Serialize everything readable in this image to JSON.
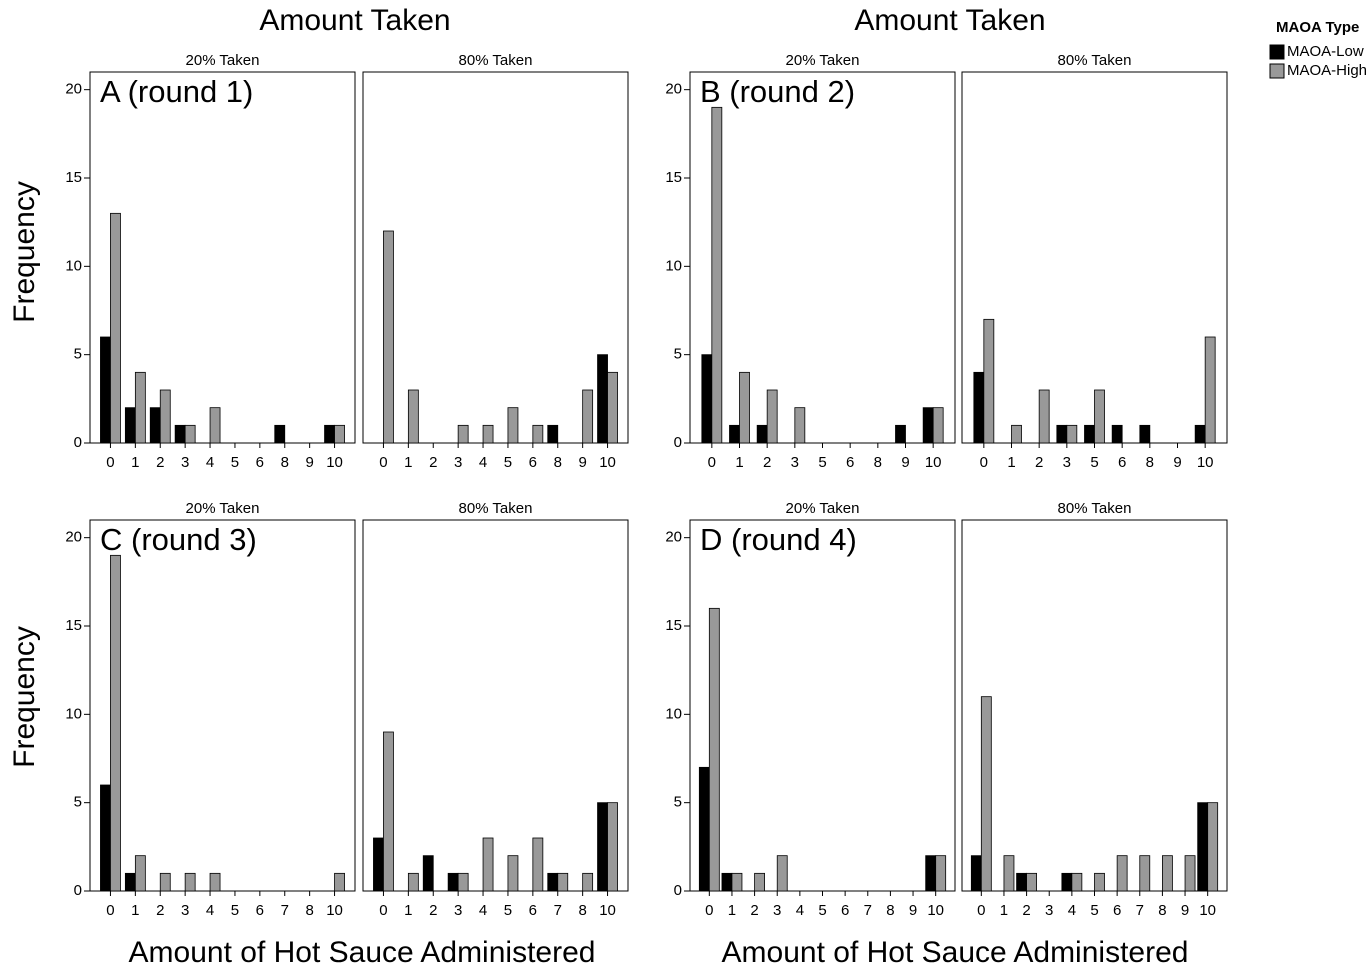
{
  "figure": {
    "column_titles": [
      "Amount Taken",
      "Amount Taken"
    ],
    "y_labels": [
      "Frequency",
      "Frequency"
    ],
    "x_labels": [
      "Amount of Hot Sauce Administered",
      "Amount of Hot Sauce Administered"
    ],
    "legend": {
      "title": "MAOA Type",
      "entries": [
        {
          "name": "MAOA-Low",
          "color": "#000000"
        },
        {
          "name": "MAOA-High",
          "color": "#999999"
        }
      ]
    }
  },
  "chart_data": [
    {
      "type": "bar",
      "subtitle": "20% Taken",
      "annotation": "A (round 1)",
      "categories": [
        "0",
        "1",
        "2",
        "3",
        "4",
        "5",
        "6",
        "8",
        "9",
        "10"
      ],
      "series": [
        {
          "values": [
            6,
            2,
            2,
            1,
            0,
            0,
            0,
            1,
            0,
            1
          ]
        },
        {
          "values": [
            13,
            4,
            3,
            1,
            2,
            0,
            0,
            0,
            0,
            1
          ]
        }
      ],
      "ylim": [
        0,
        21
      ],
      "yticks": [
        0,
        5,
        10,
        15,
        20
      ]
    },
    {
      "type": "bar",
      "subtitle": "80% Taken",
      "categories": [
        "0",
        "1",
        "2",
        "3",
        "4",
        "5",
        "6",
        "8",
        "9",
        "10"
      ],
      "series": [
        {
          "values": [
            0,
            0,
            0,
            0,
            0,
            0,
            0,
            1,
            0,
            5
          ]
        },
        {
          "values": [
            12,
            3,
            0,
            1,
            1,
            2,
            1,
            0,
            3,
            4
          ]
        }
      ],
      "ylim": [
        0,
        21
      ]
    },
    {
      "type": "bar",
      "subtitle": "20% Taken",
      "annotation": "B (round 2)",
      "categories": [
        "0",
        "1",
        "2",
        "3",
        "5",
        "6",
        "8",
        "9",
        "10"
      ],
      "series": [
        {
          "values": [
            5,
            1,
            1,
            0,
            0,
            0,
            0,
            1,
            2
          ]
        },
        {
          "values": [
            19,
            4,
            3,
            2,
            0,
            0,
            0,
            0,
            2
          ]
        }
      ],
      "ylim": [
        0,
        21
      ],
      "yticks": [
        0,
        5,
        10,
        15,
        20
      ]
    },
    {
      "type": "bar",
      "subtitle": "80% Taken",
      "categories": [
        "0",
        "1",
        "2",
        "3",
        "5",
        "6",
        "8",
        "9",
        "10"
      ],
      "series": [
        {
          "values": [
            4,
            0,
            0,
            1,
            1,
            1,
            1,
            0,
            1
          ]
        },
        {
          "values": [
            7,
            1,
            3,
            1,
            3,
            0,
            0,
            0,
            6
          ]
        }
      ],
      "ylim": [
        0,
        21
      ]
    },
    {
      "type": "bar",
      "subtitle": "20% Taken",
      "annotation": "C (round 3)",
      "categories": [
        "0",
        "1",
        "2",
        "3",
        "4",
        "5",
        "6",
        "7",
        "8",
        "10"
      ],
      "series": [
        {
          "values": [
            6,
            1,
            0,
            0,
            0,
            0,
            0,
            0,
            0,
            0
          ]
        },
        {
          "values": [
            19,
            2,
            1,
            1,
            1,
            0,
            0,
            0,
            0,
            1
          ]
        }
      ],
      "ylim": [
        0,
        21
      ],
      "yticks": [
        0,
        5,
        10,
        15,
        20
      ]
    },
    {
      "type": "bar",
      "subtitle": "80% Taken",
      "categories": [
        "0",
        "1",
        "2",
        "3",
        "4",
        "5",
        "6",
        "7",
        "8",
        "10"
      ],
      "series": [
        {
          "values": [
            3,
            0,
            2,
            1,
            0,
            0,
            0,
            1,
            0,
            5
          ]
        },
        {
          "values": [
            9,
            1,
            0,
            1,
            3,
            2,
            3,
            1,
            1,
            5
          ]
        }
      ],
      "ylim": [
        0,
        21
      ]
    },
    {
      "type": "bar",
      "subtitle": "20% Taken",
      "annotation": "D (round 4)",
      "categories": [
        "0",
        "1",
        "2",
        "3",
        "4",
        "5",
        "6",
        "7",
        "8",
        "9",
        "10"
      ],
      "series": [
        {
          "values": [
            7,
            1,
            0,
            0,
            0,
            0,
            0,
            0,
            0,
            0,
            2
          ]
        },
        {
          "values": [
            16,
            1,
            1,
            2,
            0,
            0,
            0,
            0,
            0,
            0,
            2
          ]
        }
      ],
      "ylim": [
        0,
        21
      ],
      "yticks": [
        0,
        5,
        10,
        15,
        20
      ]
    },
    {
      "type": "bar",
      "subtitle": "80% Taken",
      "categories": [
        "0",
        "1",
        "2",
        "3",
        "4",
        "5",
        "6",
        "7",
        "8",
        "9",
        "10"
      ],
      "series": [
        {
          "values": [
            2,
            0,
            1,
            0,
            1,
            0,
            0,
            0,
            0,
            0,
            5
          ]
        },
        {
          "values": [
            11,
            2,
            1,
            0,
            1,
            1,
            2,
            2,
            2,
            2,
            5
          ]
        }
      ],
      "ylim": [
        0,
        21
      ]
    }
  ]
}
